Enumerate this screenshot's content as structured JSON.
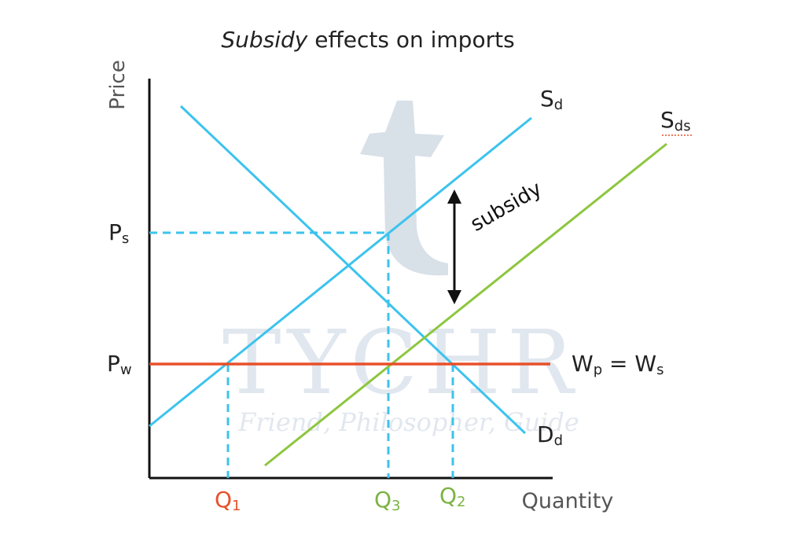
{
  "title": {
    "emph": "Subsidy",
    "rest": " effects on imports"
  },
  "axes": {
    "y_label": "Price",
    "x_label": "Quantity"
  },
  "price_labels": {
    "ps": {
      "main": "P",
      "sub": "s"
    },
    "pw": {
      "main": "P",
      "sub": "w"
    }
  },
  "curve_labels": {
    "sd": {
      "main": "S",
      "sub": "d"
    },
    "sds": {
      "main": "S",
      "sub": "ds"
    },
    "dd": {
      "main": "D",
      "sub": "d"
    },
    "world": {
      "a": "W",
      "a_sub": "p",
      "eq": " = ",
      "b": "W",
      "b_sub": "s"
    }
  },
  "quantity_labels": {
    "q1": {
      "main": "Q",
      "sub": "1"
    },
    "q3": {
      "main": "Q",
      "sub": "3"
    },
    "q2": {
      "main": "Q",
      "sub": "2"
    }
  },
  "annotation": {
    "subsidy": "subsidy"
  },
  "watermark": {
    "brand": "TYCHR",
    "tagline": "Friend, Philosopher, Guide"
  },
  "colors": {
    "supply_demand": "#3cc3ee",
    "subsidized_supply": "#8dc63f",
    "world_price": "#e8502a",
    "q1_label": "#e8502a",
    "q2_q3_label": "#7cb342",
    "axis": "#111111",
    "watermark": "#c9d5e3"
  }
}
